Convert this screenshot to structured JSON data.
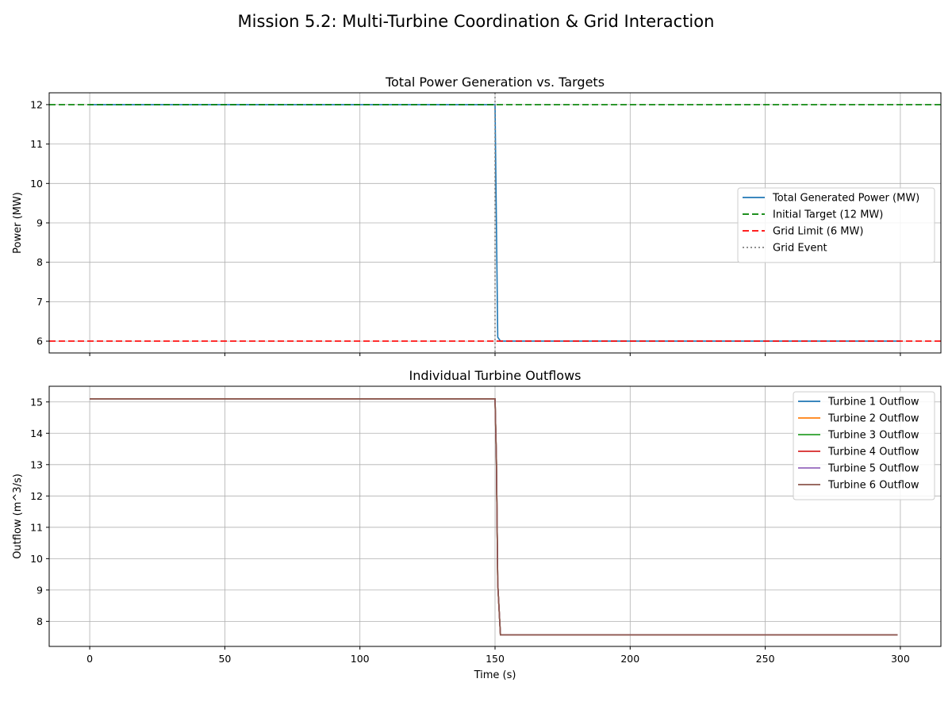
{
  "figure": {
    "suptitle": "Mission 5.2: Multi-Turbine Coordination & Grid Interaction"
  },
  "chart_data": [
    {
      "type": "line",
      "title": "Total Power Generation vs. Targets",
      "xlabel": "",
      "ylabel": "Power (MW)",
      "xlim": [
        -15,
        315
      ],
      "ylim": [
        5.7,
        12.3
      ],
      "xticks": [
        0,
        50,
        100,
        150,
        200,
        250,
        300
      ],
      "yticks": [
        6,
        7,
        8,
        9,
        10,
        11,
        12
      ],
      "show_xtick_labels": false,
      "grid": true,
      "legend_position": "center-right",
      "series": [
        {
          "name": "Total Generated Power (MW)",
          "color": "#1f77b4",
          "style": "solid",
          "x": [
            0,
            150,
            151,
            152,
            300
          ],
          "y": [
            12,
            12,
            6.1,
            6,
            6
          ]
        },
        {
          "name": "Initial Target (12 MW)",
          "color": "#008000",
          "style": "dashed",
          "hline": 12
        },
        {
          "name": "Grid Limit (6 MW)",
          "color": "#ff0000",
          "style": "dashed",
          "hline": 6
        },
        {
          "name": "Grid Event",
          "color": "#808080",
          "style": "dotted",
          "vline": 150
        }
      ]
    },
    {
      "type": "line",
      "title": "Individual Turbine Outflows",
      "xlabel": "Time (s)",
      "ylabel": "Outflow (m^3/s)",
      "xlim": [
        -15,
        315
      ],
      "ylim": [
        7.2,
        15.5
      ],
      "xticks": [
        0,
        50,
        100,
        150,
        200,
        250,
        300
      ],
      "yticks": [
        8,
        9,
        10,
        11,
        12,
        13,
        14,
        15
      ],
      "show_xtick_labels": true,
      "grid": true,
      "legend_position": "top-right",
      "series": [
        {
          "name": "Turbine 1 Outflow",
          "color": "#1f77b4",
          "style": "solid",
          "x": [
            0,
            150,
            150.5,
            151,
            152,
            299
          ],
          "y": [
            15.1,
            15.1,
            13.2,
            9.2,
            7.57,
            7.57
          ]
        },
        {
          "name": "Turbine 2 Outflow",
          "color": "#ff7f0e",
          "style": "solid",
          "x": [
            0,
            150,
            150.5,
            151,
            152,
            299
          ],
          "y": [
            15.1,
            15.1,
            13.2,
            9.2,
            7.57,
            7.57
          ]
        },
        {
          "name": "Turbine 3 Outflow",
          "color": "#2ca02c",
          "style": "solid",
          "x": [
            0,
            150,
            150.5,
            151,
            152,
            299
          ],
          "y": [
            15.1,
            15.1,
            13.2,
            9.2,
            7.57,
            7.57
          ]
        },
        {
          "name": "Turbine 4 Outflow",
          "color": "#d62728",
          "style": "solid",
          "x": [
            0,
            150,
            150.5,
            151,
            152,
            299
          ],
          "y": [
            15.1,
            15.1,
            13.2,
            9.2,
            7.57,
            7.57
          ]
        },
        {
          "name": "Turbine 5 Outflow",
          "color": "#9467bd",
          "style": "solid",
          "x": [
            0,
            150,
            150.5,
            151,
            152,
            299
          ],
          "y": [
            15.1,
            15.1,
            13.2,
            9.2,
            7.57,
            7.57
          ]
        },
        {
          "name": "Turbine 6 Outflow",
          "color": "#8c564b",
          "style": "solid",
          "x": [
            0,
            150,
            150.5,
            151,
            152,
            299
          ],
          "y": [
            15.1,
            15.1,
            13.2,
            9.2,
            7.57,
            7.57
          ]
        }
      ]
    }
  ]
}
